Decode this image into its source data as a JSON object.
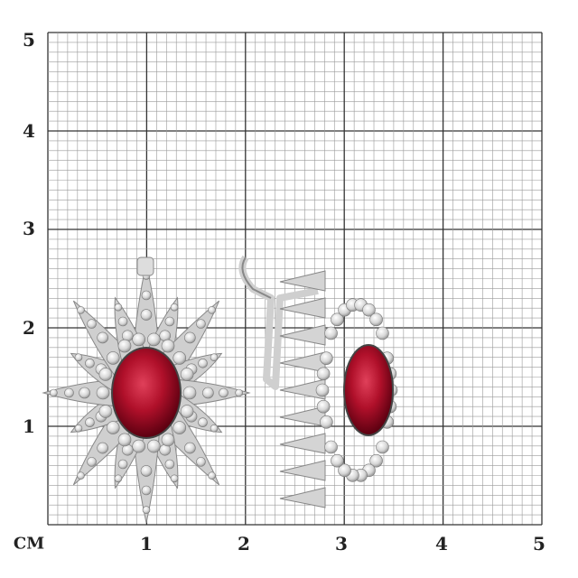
{
  "scale": {
    "unit_label": "CM",
    "x_ticks": [
      "1",
      "2",
      "3",
      "4",
      "5"
    ],
    "y_ticks": [
      "1",
      "2",
      "3",
      "4",
      "5"
    ],
    "minor_divisions_per_unit": 10
  },
  "colors": {
    "grid_major": "#333333",
    "grid_minor": "#9a9a9a",
    "ruby": "#b0102a",
    "metal": "#d8d8d8"
  },
  "product": {
    "items": [
      "earring-front-view",
      "earring-side-view"
    ]
  }
}
